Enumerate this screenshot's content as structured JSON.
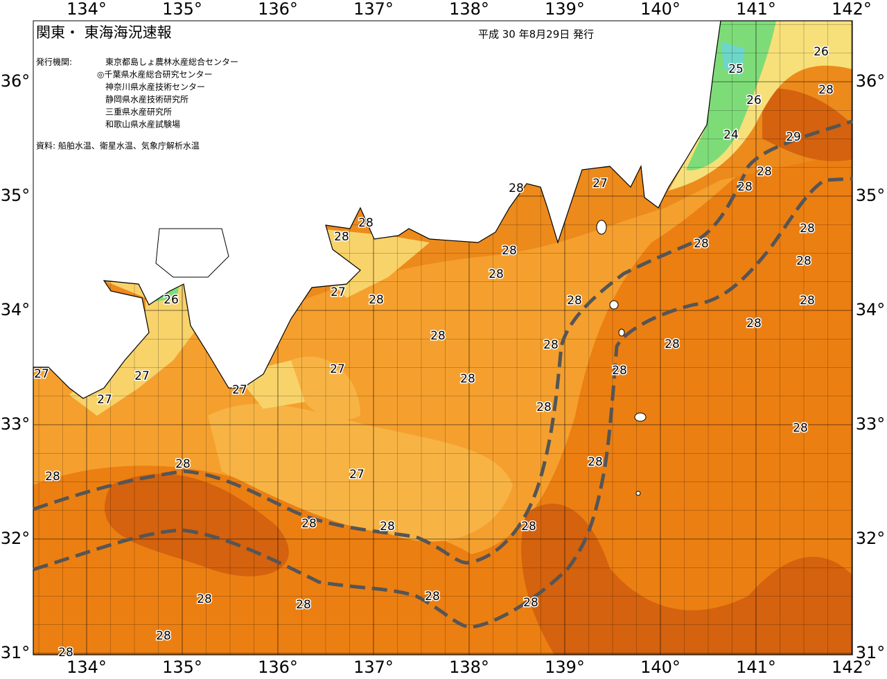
{
  "header": {
    "title": "関東・ 東海海況速報",
    "date": "平成 30 年8月29日 発行"
  },
  "issuers": {
    "label": "発行機関:",
    "orgs": [
      "東京都島しょ農林水産総合センター",
      "◎千葉県水産総合研究センター",
      "神奈川県水産技術センター",
      "静岡県水産技術研究所",
      "三重県水産研究所",
      "和歌山県水産試験場"
    ]
  },
  "sources": "資料: 船舶水温、衛星水温、気象庁解析水温",
  "axes": {
    "longitudes": [
      "134°",
      "135°",
      "136°",
      "137°",
      "138°",
      "139°",
      "140°",
      "141°",
      "142°"
    ],
    "latitudes": [
      "36°",
      "35°",
      "34°",
      "33°",
      "32°",
      "31°"
    ]
  },
  "contour_labels": [
    26,
    25,
    28,
    26,
    24,
    29,
    28,
    28,
    28,
    27,
    28,
    28,
    28,
    28,
    28,
    28,
    28,
    27,
    28,
    26,
    28,
    28,
    28,
    28,
    28,
    28,
    27,
    27,
    28,
    28,
    27,
    27,
    27,
    28,
    28,
    28,
    28,
    28,
    27,
    28,
    28,
    28,
    28,
    28,
    28,
    28,
    28,
    28
  ]
}
